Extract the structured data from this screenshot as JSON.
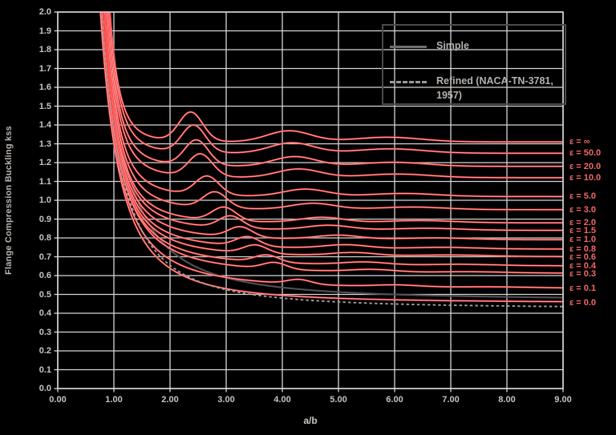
{
  "colors": {
    "background": "#000000",
    "grid": "#d6d6d6",
    "axis_text": "#c9c4bf",
    "curve_red": "#fb3b3b",
    "curve_red_core": "#ffc9c9",
    "epsilon_label": "#f16868",
    "legend_border": "#4a4a4a",
    "legend_text": "#b6b1ac",
    "simple_line": "#515151",
    "refined_line": "#9e9e9e"
  },
  "chart_data": {
    "type": "line",
    "title": "",
    "xlabel": "a/b",
    "ylabel": "Flange Compression Buckling kss",
    "xlim": [
      0,
      9
    ],
    "ylim": [
      0,
      2
    ],
    "x_ticks": [
      "0.00",
      "1.00",
      "2.00",
      "3.00",
      "4.00",
      "5.00",
      "6.00",
      "7.00",
      "8.00",
      "9.00"
    ],
    "y_ticks": [
      "0.0",
      "0.1",
      "0.2",
      "0.3",
      "0.4",
      "0.5",
      "0.6",
      "0.7",
      "0.8",
      "0.9",
      "1.0",
      "1.1",
      "1.2",
      "1.3",
      "1.4",
      "1.5",
      "1.6",
      "1.7",
      "1.8",
      "1.9",
      "2.0"
    ],
    "grid": true,
    "legend_position": "top-right",
    "legend": [
      {
        "label": "Simple",
        "style": "solid"
      },
      {
        "label": "Refined (NACA-TN-3781, 1957)",
        "style": "dashed"
      }
    ],
    "series": [
      {
        "right_label": "ε = ∞",
        "epsilon": "∞",
        "asymptote_ks": 1.31,
        "entry_x": 0.93,
        "decay": 5.5,
        "bump_amp": 0.155,
        "bump_center": 2.37
      },
      {
        "right_label": "ε = 50.0",
        "epsilon": "50.0",
        "asymptote_ks": 1.25,
        "entry_x": 0.92,
        "decay": 5.2,
        "bump_amp": 0.145,
        "bump_center": 2.42
      },
      {
        "right_label": "ε = 20.0",
        "epsilon": "20.0",
        "asymptote_ks": 1.18,
        "entry_x": 0.905,
        "decay": 4.9,
        "bump_amp": 0.135,
        "bump_center": 2.47
      },
      {
        "right_label": "ε = 10.0",
        "epsilon": "10.0",
        "asymptote_ks": 1.12,
        "entry_x": 0.89,
        "decay": 4.6,
        "bump_amp": 0.12,
        "bump_center": 2.54
      },
      {
        "right_label": "ε = 5.0",
        "epsilon": "5.0",
        "asymptote_ks": 1.02,
        "entry_x": 0.875,
        "decay": 4.2,
        "bump_amp": 0.1,
        "bump_center": 2.66
      },
      {
        "right_label": "ε = 3.0",
        "epsilon": "3.0",
        "asymptote_ks": 0.95,
        "entry_x": 0.86,
        "decay": 3.9,
        "bump_amp": 0.085,
        "bump_center": 2.8
      },
      {
        "right_label": "ε = 2.0",
        "epsilon": "2.0",
        "asymptote_ks": 0.88,
        "entry_x": 0.845,
        "decay": 3.6,
        "bump_amp": 0.072,
        "bump_center": 2.96
      },
      {
        "right_label": "ε = 1.5",
        "epsilon": "1.5",
        "asymptote_ks": 0.84,
        "entry_x": 0.835,
        "decay": 3.4,
        "bump_amp": 0.064,
        "bump_center": 3.08
      },
      {
        "right_label": "ε = 1.0",
        "epsilon": "1.0",
        "asymptote_ks": 0.79,
        "entry_x": 0.822,
        "decay": 3.2,
        "bump_amp": 0.055,
        "bump_center": 3.25
      },
      {
        "right_label": "ε = 0.8",
        "epsilon": "0.8",
        "asymptote_ks": 0.74,
        "entry_x": 0.81,
        "decay": 3.0,
        "bump_amp": 0.05,
        "bump_center": 3.38
      },
      {
        "right_label": "ε = 0.6",
        "epsilon": "0.6",
        "asymptote_ks": 0.7,
        "entry_x": 0.8,
        "decay": 2.85,
        "bump_amp": 0.044,
        "bump_center": 3.52
      },
      {
        "right_label": "ε = 0.4",
        "epsilon": "0.4",
        "asymptote_ks": 0.65,
        "entry_x": 0.79,
        "decay": 2.65,
        "bump_amp": 0.038,
        "bump_center": 3.72
      },
      {
        "right_label": "ε = 0.3",
        "epsilon": "0.3",
        "asymptote_ks": 0.61,
        "entry_x": 0.785,
        "decay": 2.5,
        "bump_amp": 0.034,
        "bump_center": 3.86
      },
      {
        "right_label": "ε = 0.1",
        "epsilon": "0.1",
        "asymptote_ks": 0.53,
        "entry_x": 0.77,
        "decay": 2.35,
        "bump_amp": 0.024,
        "bump_center": 4.3
      },
      {
        "right_label": "ε = 0.0",
        "epsilon": "0.0",
        "asymptote_ks": 0.455,
        "entry_x": 0.76,
        "decay": 2.2,
        "bump_amp": 0.0,
        "bump_center": 0
      }
    ],
    "reference_series": [
      {
        "name": "Simple",
        "style": "solid",
        "asymptote_ks": 0.47,
        "coef": 1.07,
        "power": 2.0
      },
      {
        "name": "Refined (NACA-TN-3781, 1957)",
        "style": "dashed",
        "asymptote_ks": 0.425,
        "coef": 0.95,
        "power": 2.05
      }
    ]
  }
}
